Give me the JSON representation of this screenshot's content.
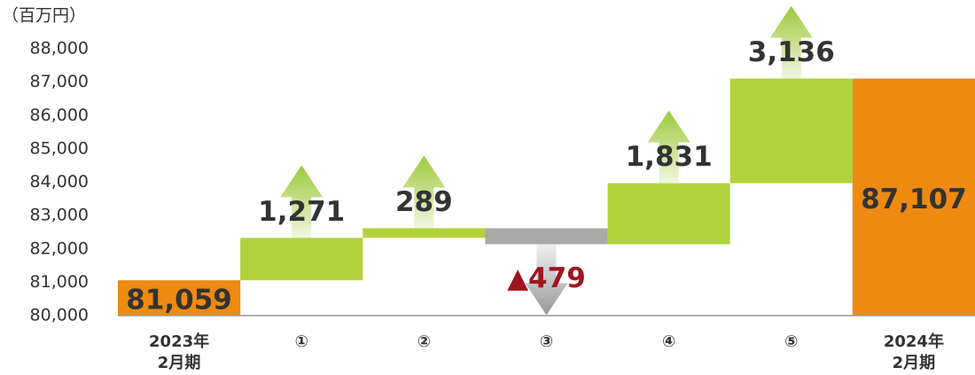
{
  "chart_data": {
    "type": "waterfall",
    "unit_label": "（百万円）",
    "categories": [
      "2023年\n2月期",
      "①",
      "②",
      "③",
      "④",
      "⑤",
      "2024年\n2月期"
    ],
    "values": [
      81059,
      1271,
      289,
      -479,
      1831,
      3136,
      87107
    ],
    "value_labels": [
      "81,059",
      "1,271",
      "289",
      "▲479",
      "1,831",
      "3,136",
      "87,107"
    ],
    "colors": [
      "#ee8a10",
      "#b0d33c",
      "#b0d33c",
      "#a9a9a9",
      "#b0d33c",
      "#b0d33c",
      "#ee8a10"
    ],
    "negative_label_color": "#a0141e",
    "ylim": [
      80000,
      88000
    ],
    "yticks": [
      {
        "value": 80000,
        "label": "80,000"
      },
      {
        "value": 81000,
        "label": "81,000"
      },
      {
        "value": 82000,
        "label": "82,000"
      },
      {
        "value": 83000,
        "label": "83,000"
      },
      {
        "value": 84000,
        "label": "84,000"
      },
      {
        "value": 85000,
        "label": "85,000"
      },
      {
        "value": 86000,
        "label": "86,000"
      },
      {
        "value": 87000,
        "label": "87,000"
      },
      {
        "value": 88000,
        "label": "88,000"
      }
    ]
  }
}
